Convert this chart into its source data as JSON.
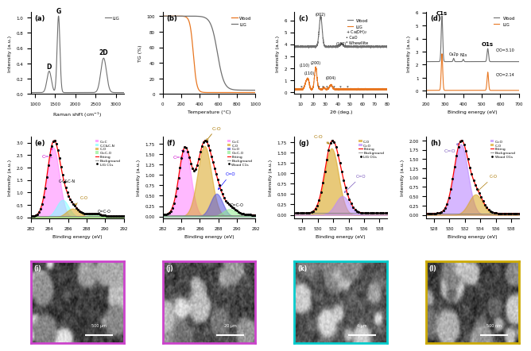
{
  "fig_width": 6.6,
  "fig_height": 4.34,
  "colors": {
    "wood_orange": "#E87722",
    "lig_gray": "#707070",
    "dark_gray": "#404040",
    "cc_pink": "#FF80FF",
    "ccn_cyan": "#80FFFF",
    "co_gold": "#DAA520",
    "ocoo_green": "#90EE90",
    "fitting_red": "#FF2020",
    "co_blue": "#5555DD",
    "ceq_lavender": "#BB88FF",
    "co_purple_o": "#9966CC"
  },
  "border_colors": [
    "#CC44CC",
    "#CC44CC",
    "#00CCCC",
    "#CCAA00"
  ],
  "scale_labels": [
    "500 μm",
    "20 μm",
    "4 μm",
    "500 nm"
  ]
}
